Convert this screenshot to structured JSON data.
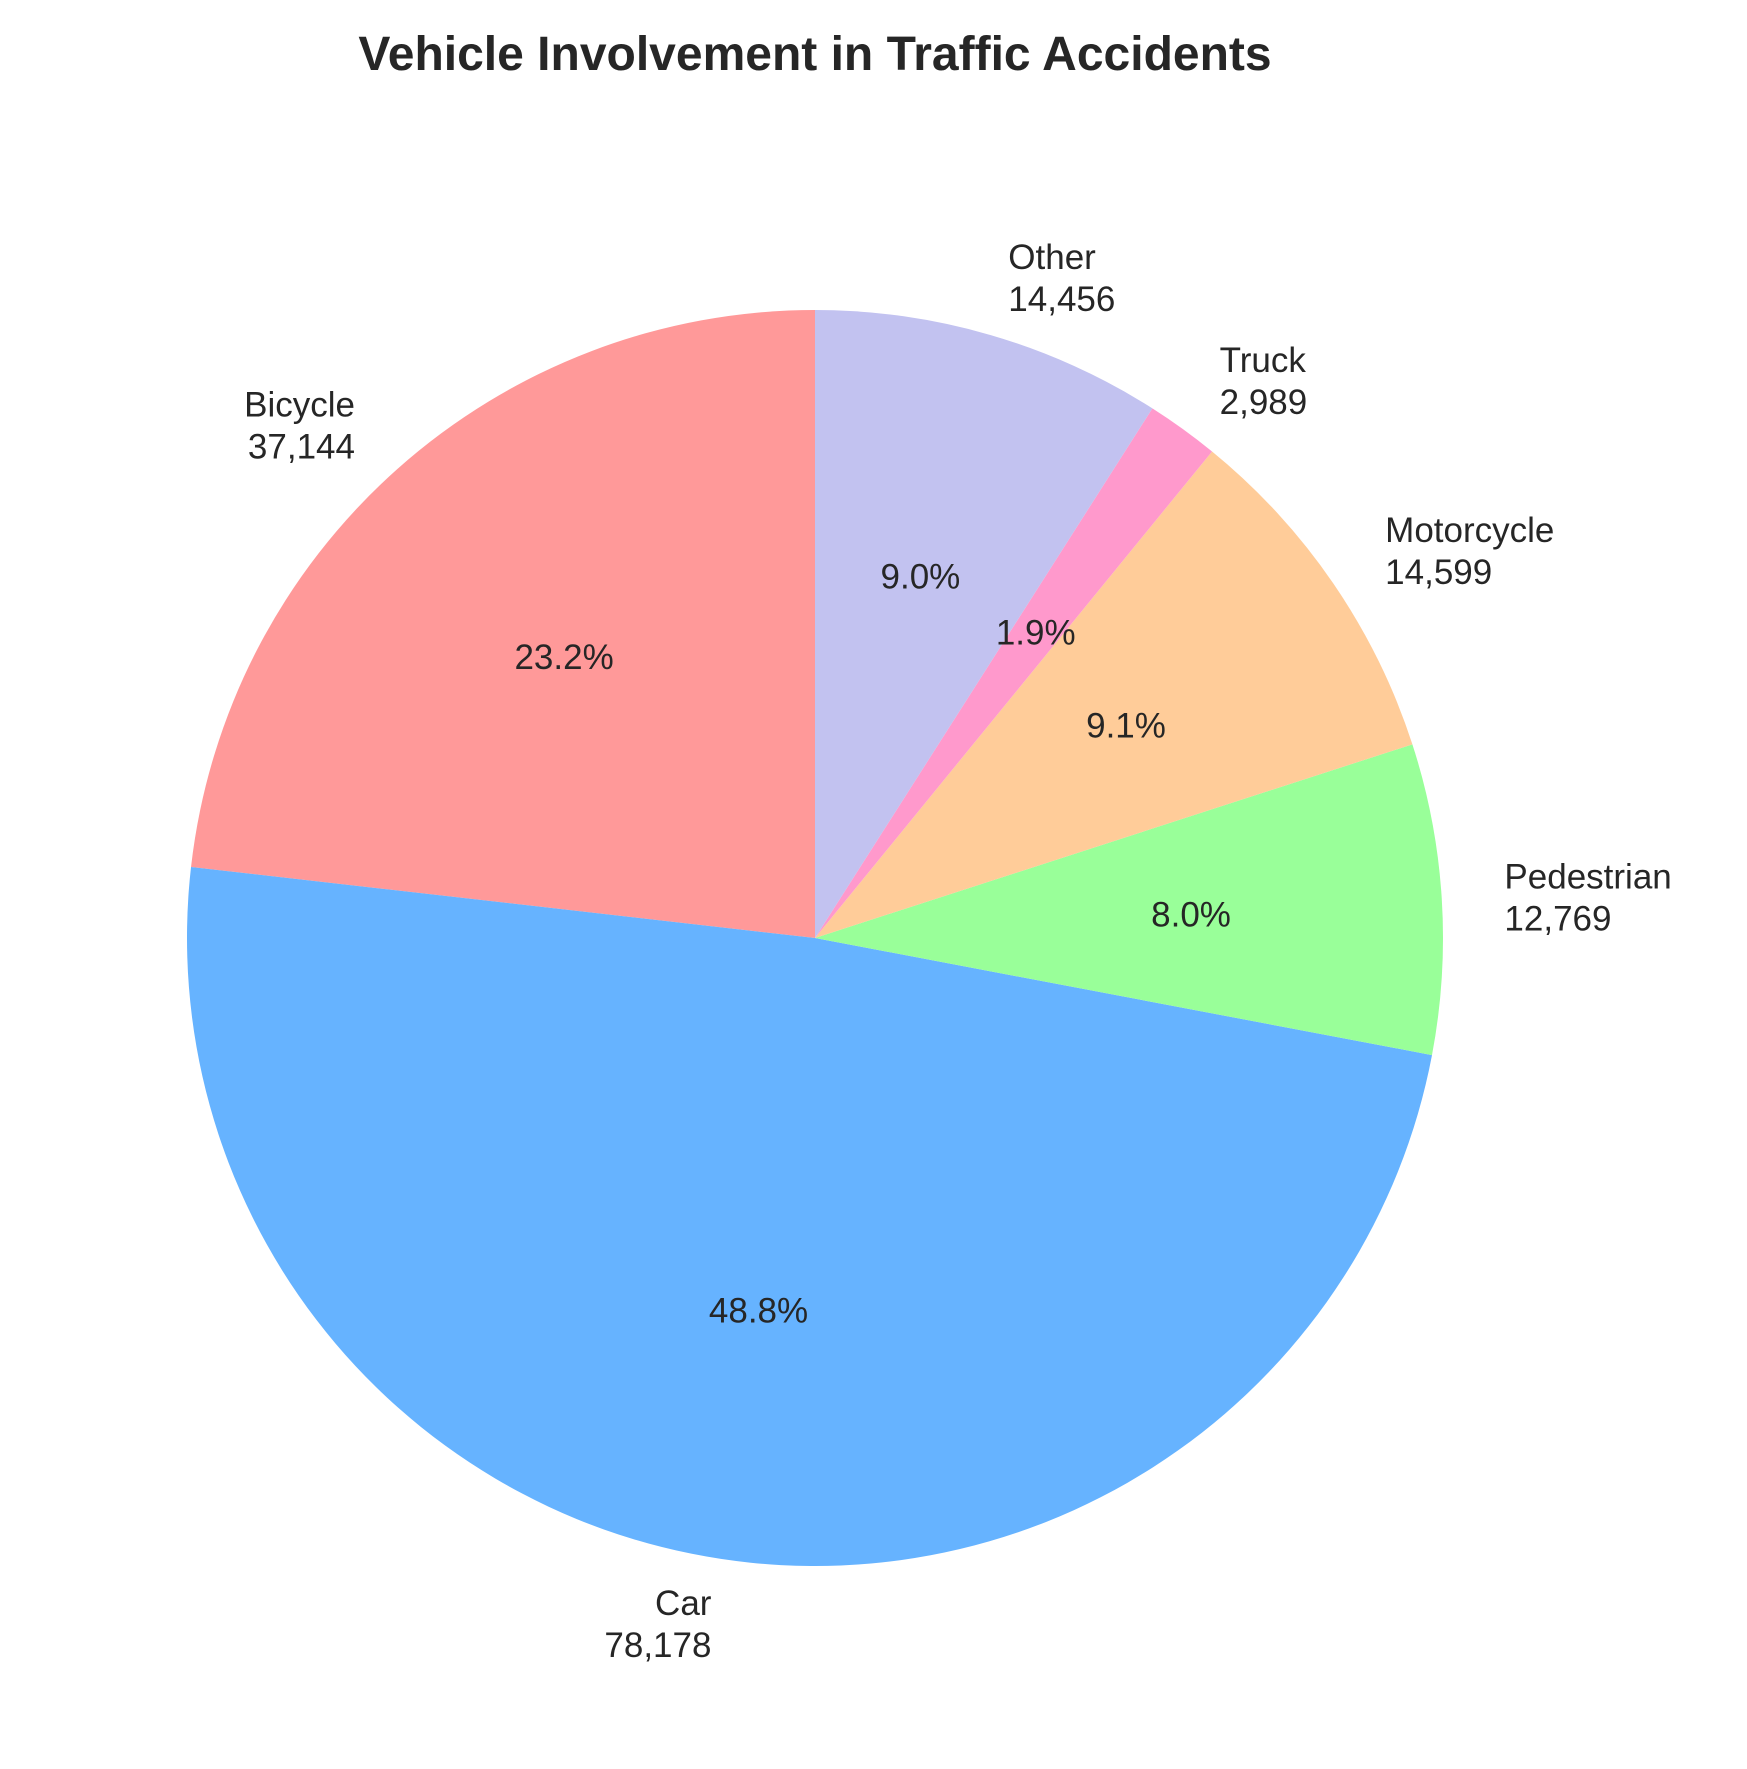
{
  "chart_data": {
    "type": "pie",
    "title": "Vehicle Involvement in Traffic Accidents",
    "start_angle_deg": 90,
    "direction": "counterclockwise",
    "slices": [
      {
        "label": "Car",
        "value": 78178,
        "value_label": "78,178",
        "percent_label": "48.8%",
        "color": "#66b3ff"
      },
      {
        "label": "Pedestrian",
        "value": 12769,
        "value_label": "12,769",
        "percent_label": "8.0%",
        "color": "#99ff99"
      },
      {
        "label": "Motorcycle",
        "value": 14599,
        "value_label": "14,599",
        "percent_label": "9.1%",
        "color": "#ffcc99"
      },
      {
        "label": "Truck",
        "value": 2989,
        "value_label": "2,989",
        "percent_label": "1.9%",
        "color": "#ff99cc"
      },
      {
        "label": "Other",
        "value": 14456,
        "value_label": "14,456",
        "percent_label": "9.0%",
        "color": "#c2c2f0"
      },
      {
        "label": "Bicycle",
        "value": 37144,
        "value_label": "37,144",
        "percent_label": "23.2%",
        "color": "#ff9999"
      }
    ]
  }
}
